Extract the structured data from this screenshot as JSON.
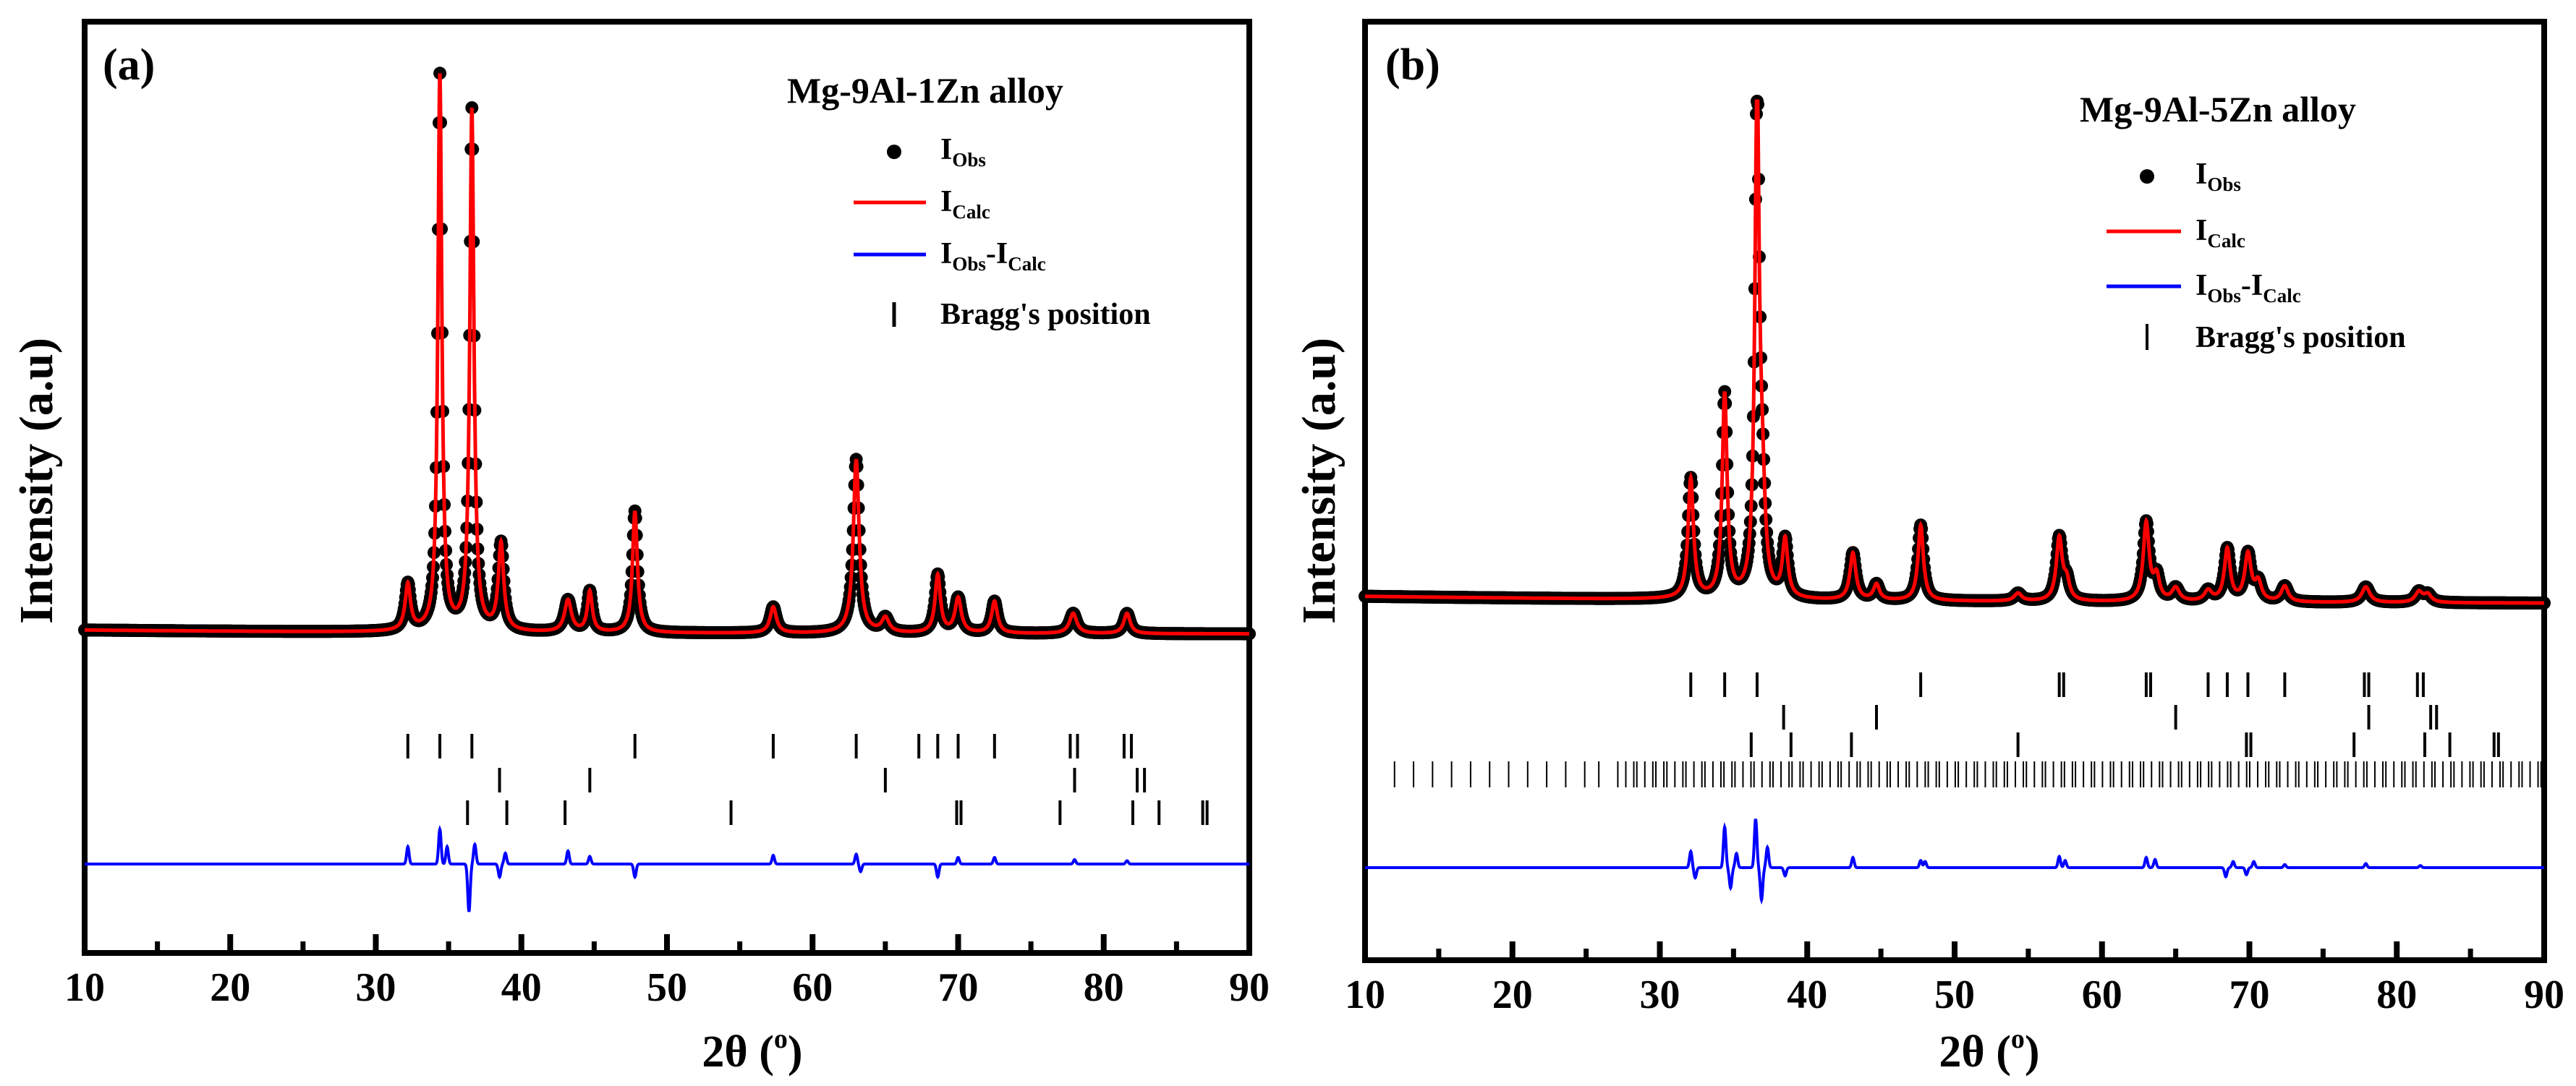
{
  "chart_data": [
    {
      "type": "line",
      "panel_label": "(a)",
      "title": "Mg-9Al-1Zn alloy",
      "xlabel_main": "2θ (",
      "xlabel_sup": "o",
      "xlabel_end": ")",
      "ylabel": "Intensity (a.u)",
      "xlim": [
        10,
        90
      ],
      "x_ticks": [
        10,
        20,
        30,
        40,
        50,
        60,
        70,
        80,
        90
      ],
      "x_minor_ticks": [
        15,
        25,
        35,
        45,
        55,
        65,
        75,
        85
      ],
      "legend": [
        {
          "kind": "dot",
          "color": "#000000",
          "main": "I",
          "sub": "Obs",
          "main2": "",
          "sub2": ""
        },
        {
          "kind": "line",
          "color": "#ff0000",
          "main": "I",
          "sub": "Calc",
          "main2": "",
          "sub2": ""
        },
        {
          "kind": "line",
          "color": "#0000ff",
          "main": "I",
          "sub": "Obs",
          "main2": "-I",
          "sub2": "Calc"
        },
        {
          "kind": "bar",
          "color": "#000000",
          "main": "Bragg's position",
          "sub": "",
          "main2": "",
          "sub2": ""
        }
      ],
      "baseline": {
        "start": 0.42,
        "end": 0.35,
        "decay": 28
      },
      "peaks": [
        {
          "x": 32.2,
          "h": 0.8,
          "w": 0.22
        },
        {
          "x": 34.4,
          "h": 9.6,
          "w": 0.16
        },
        {
          "x": 36.6,
          "h": 9.0,
          "w": 0.17
        },
        {
          "x": 38.6,
          "h": 1.5,
          "w": 0.22
        },
        {
          "x": 43.2,
          "h": 0.55,
          "w": 0.28
        },
        {
          "x": 44.7,
          "h": 0.7,
          "w": 0.2
        },
        {
          "x": 47.8,
          "h": 2.1,
          "w": 0.2
        },
        {
          "x": 57.3,
          "h": 0.45,
          "w": 0.26
        },
        {
          "x": 63.0,
          "h": 3.0,
          "w": 0.24
        },
        {
          "x": 65.0,
          "h": 0.25,
          "w": 0.3
        },
        {
          "x": 68.6,
          "h": 1.0,
          "w": 0.22
        },
        {
          "x": 70.0,
          "h": 0.6,
          "w": 0.26
        },
        {
          "x": 72.5,
          "h": 0.55,
          "w": 0.24
        },
        {
          "x": 77.9,
          "h": 0.35,
          "w": 0.3
        },
        {
          "x": 81.6,
          "h": 0.35,
          "w": 0.26
        }
      ],
      "bragg_rows": [
        [
          32.2,
          34.4,
          36.6,
          47.8,
          57.3,
          63.0,
          67.3,
          68.6,
          70.0,
          72.5,
          77.7,
          78.2,
          81.4,
          81.9
        ],
        [
          38.5,
          44.7,
          65.0,
          78.0,
          82.3,
          82.8
        ],
        [
          36.3,
          39.0,
          43.0,
          54.4,
          69.9,
          70.2,
          77.0,
          82.0,
          83.8,
          86.8,
          87.1
        ]
      ],
      "diff_features": [
        {
          "x": 32.2,
          "a": 0.8
        },
        {
          "x": 34.4,
          "a": 1.6
        },
        {
          "x": 34.9,
          "a": 0.8
        },
        {
          "x": 36.4,
          "a": -2.2
        },
        {
          "x": 36.8,
          "a": 0.9
        },
        {
          "x": 38.5,
          "a": -0.6
        },
        {
          "x": 38.9,
          "a": 0.5
        },
        {
          "x": 43.2,
          "a": 0.6
        },
        {
          "x": 44.7,
          "a": 0.35
        },
        {
          "x": 47.8,
          "a": -0.6
        },
        {
          "x": 57.3,
          "a": 0.4
        },
        {
          "x": 63.0,
          "a": 0.45
        },
        {
          "x": 63.3,
          "a": -0.35
        },
        {
          "x": 68.6,
          "a": -0.6
        },
        {
          "x": 70.0,
          "a": 0.3
        },
        {
          "x": 72.5,
          "a": 0.3
        },
        {
          "x": 78.0,
          "a": 0.2
        },
        {
          "x": 81.6,
          "a": 0.15
        }
      ]
    },
    {
      "type": "line",
      "panel_label": "(b)",
      "title": "Mg-9Al-5Zn alloy",
      "xlabel_main": "2θ (",
      "xlabel_sup": "o",
      "xlabel_end": ")",
      "ylabel": "Intensity (a.u)",
      "xlim": [
        10,
        90
      ],
      "x_ticks": [
        10,
        20,
        30,
        40,
        50,
        60,
        70,
        80,
        90
      ],
      "x_minor_ticks": [
        15,
        25,
        35,
        45,
        55,
        65,
        75,
        85
      ],
      "legend": [
        {
          "kind": "dot",
          "color": "#000000",
          "main": "I",
          "sub": "Obs",
          "main2": "",
          "sub2": ""
        },
        {
          "kind": "line",
          "color": "#ff0000",
          "main": "I",
          "sub": "Calc",
          "main2": "",
          "sub2": ""
        },
        {
          "kind": "line",
          "color": "#0000ff",
          "main": "I",
          "sub": "Obs",
          "main2": "-I",
          "sub2": "Calc"
        },
        {
          "kind": "bar",
          "color": "#000000",
          "main": "Bragg's position",
          "sub": "",
          "main2": "",
          "sub2": ""
        }
      ],
      "baseline": {
        "start": 0.35,
        "end": 0.2,
        "decay": 40
      },
      "peaks": [
        {
          "x": 32.1,
          "h": 2.3,
          "w": 0.22
        },
        {
          "x": 34.4,
          "h": 3.9,
          "w": 0.2
        },
        {
          "x": 36.6,
          "h": 9.6,
          "w": 0.18
        },
        {
          "x": 36.95,
          "h": 1.6,
          "w": 0.22
        },
        {
          "x": 38.5,
          "h": 1.1,
          "w": 0.22
        },
        {
          "x": 43.1,
          "h": 0.9,
          "w": 0.24
        },
        {
          "x": 44.7,
          "h": 0.3,
          "w": 0.24
        },
        {
          "x": 47.7,
          "h": 1.45,
          "w": 0.22
        },
        {
          "x": 54.3,
          "h": 0.15,
          "w": 0.3
        },
        {
          "x": 57.1,
          "h": 1.2,
          "w": 0.24
        },
        {
          "x": 57.6,
          "h": 0.35,
          "w": 0.24
        },
        {
          "x": 63.0,
          "h": 1.5,
          "w": 0.24
        },
        {
          "x": 63.7,
          "h": 0.45,
          "w": 0.24
        },
        {
          "x": 65.0,
          "h": 0.25,
          "w": 0.3
        },
        {
          "x": 67.2,
          "h": 0.2,
          "w": 0.3
        },
        {
          "x": 68.5,
          "h": 1.0,
          "w": 0.24
        },
        {
          "x": 69.9,
          "h": 0.9,
          "w": 0.26
        },
        {
          "x": 70.6,
          "h": 0.35,
          "w": 0.26
        },
        {
          "x": 72.4,
          "h": 0.3,
          "w": 0.28
        },
        {
          "x": 77.9,
          "h": 0.3,
          "w": 0.32
        },
        {
          "x": 81.5,
          "h": 0.2,
          "w": 0.3
        },
        {
          "x": 82.1,
          "h": 0.15,
          "w": 0.3
        }
      ],
      "bragg_rows": [
        [
          32.1,
          34.4,
          36.6,
          47.7,
          57.1,
          57.4,
          63.0,
          63.3,
          67.2,
          68.5,
          69.9,
          72.4,
          77.8,
          78.1,
          81.4,
          81.8
        ],
        [
          38.4,
          44.7,
          65.0,
          78.1,
          82.3,
          82.7
        ],
        [
          36.2,
          38.9,
          43.0,
          54.3,
          69.8,
          70.1,
          77.1,
          81.9,
          83.6,
          86.6,
          86.9
        ]
      ],
      "dense_row": {
        "start": 12.0,
        "end": 89.8,
        "step": 0.42
      },
      "diff_features": [
        {
          "x": 32.1,
          "a": 0.8
        },
        {
          "x": 32.4,
          "a": -0.5
        },
        {
          "x": 34.4,
          "a": 2.0
        },
        {
          "x": 34.8,
          "a": -1.0
        },
        {
          "x": 35.2,
          "a": 0.7
        },
        {
          "x": 36.5,
          "a": 2.4
        },
        {
          "x": 36.9,
          "a": -1.6
        },
        {
          "x": 37.3,
          "a": 1.0
        },
        {
          "x": 38.5,
          "a": -0.4
        },
        {
          "x": 43.1,
          "a": 0.5
        },
        {
          "x": 47.7,
          "a": 0.35
        },
        {
          "x": 48.0,
          "a": 0.3
        },
        {
          "x": 57.1,
          "a": 0.55
        },
        {
          "x": 57.5,
          "a": 0.35
        },
        {
          "x": 63.0,
          "a": 0.5
        },
        {
          "x": 63.6,
          "a": 0.4
        },
        {
          "x": 68.4,
          "a": -0.45
        },
        {
          "x": 68.9,
          "a": 0.3
        },
        {
          "x": 69.8,
          "a": -0.35
        },
        {
          "x": 70.3,
          "a": 0.3
        },
        {
          "x": 72.4,
          "a": 0.15
        },
        {
          "x": 77.9,
          "a": 0.2
        },
        {
          "x": 81.6,
          "a": 0.1
        }
      ]
    }
  ]
}
